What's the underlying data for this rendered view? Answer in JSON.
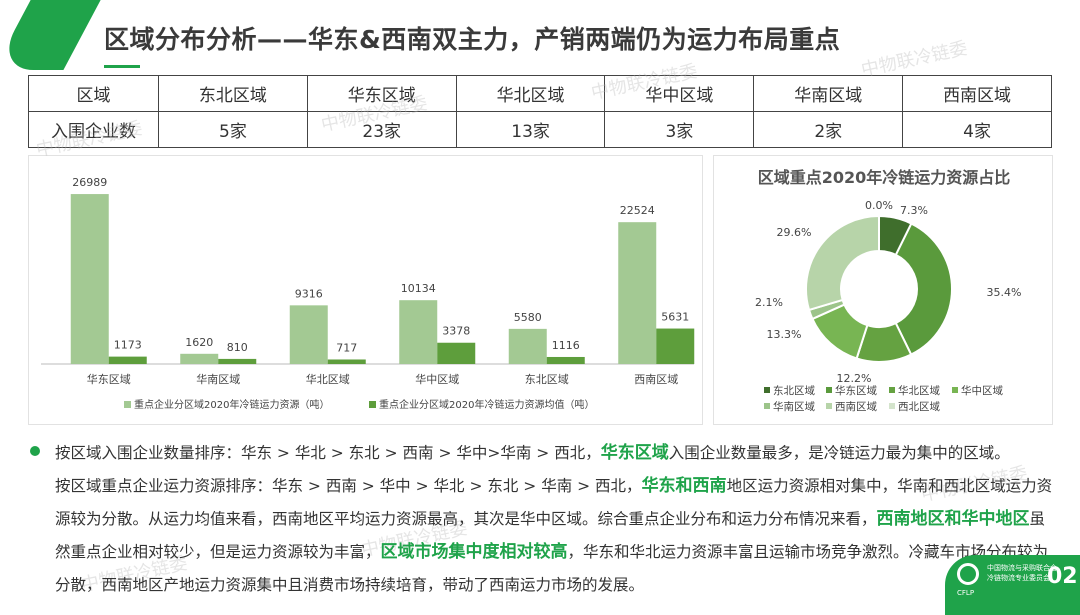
{
  "header": {
    "title": "区域分布分析——华东&西南双主力，产销两端仍为运力布局重点"
  },
  "watermark": "中物联冷链委",
  "table": {
    "headers": [
      "区域",
      "东北区域",
      "华东区域",
      "华北区域",
      "华中区域",
      "华南区域",
      "西南区域"
    ],
    "row": [
      "入围企业数",
      "5家",
      "23家",
      "13家",
      "3家",
      "2家",
      "4家"
    ]
  },
  "chart_data": [
    {
      "type": "bar",
      "categories": [
        "华东区域",
        "华南区域",
        "华北区域",
        "华中区域",
        "东北区域",
        "西南区域"
      ],
      "series": [
        {
          "name": "重点企业分区域2020年冷链运力资源（吨）",
          "values": [
            26989,
            1620,
            9316,
            10134,
            5580,
            22524
          ],
          "color": "#a3c993"
        },
        {
          "name": "重点企业分区域2020年冷链运力资源均值（吨）",
          "values": [
            1173,
            810,
            717,
            3378,
            1116,
            5631
          ],
          "color": "#5e9e3c"
        }
      ],
      "ylim": [
        0,
        27000
      ],
      "grid": false,
      "legend": "bottom"
    },
    {
      "type": "pie",
      "title": "区域重点2020年冷链运力资源占比",
      "categories": [
        "东北区域",
        "华东区域",
        "华北区域",
        "华中区域",
        "华南区域",
        "西南区域",
        "西北区域"
      ],
      "values": [
        7.3,
        35.4,
        12.2,
        13.3,
        2.1,
        29.6,
        0.0
      ],
      "labels": [
        "7.3%",
        "35.4%",
        "12.2%",
        "13.3%",
        "2.1%",
        "29.6%",
        "0.0%"
      ],
      "colors": [
        "#3f6e2c",
        "#5a9a3c",
        "#65a241",
        "#78b553",
        "#9cc48a",
        "#b7d4a9",
        "#d4e4cc"
      ],
      "legend": "bottom"
    }
  ],
  "body": {
    "line1": [
      {
        "t": "按区域入围企业数量排序：华东 > 华北 > 东北 > 西南 > 华中>华南 > 西北，"
      },
      {
        "t": "华东区域",
        "hl": true
      },
      {
        "t": "入围企业数量最多，是冷链运力最为集中的区域。"
      }
    ],
    "line2": [
      {
        "t": "按区域重点企业运力资源排序：华东 > 西南 > 华中 > 华北 > 东北 > 华南 > 西北，"
      },
      {
        "t": "华东和西南",
        "hl": true
      },
      {
        "t": "地区运力资源相对集中，华南和西北区域运力资源较为分散。从运力均值来看，西南地区平均运力资源最高，其次是华中区域。综合重点企业分布和运力分布情况来看，"
      },
      {
        "t": "西南地区和华中地区",
        "hl": true
      },
      {
        "t": "虽然重点企业相对较少，但是运力资源较为丰富，"
      },
      {
        "t": "区域市场集中度相对较高",
        "hl": true
      },
      {
        "t": "，华东和华北运力资源丰富且运输市场竞争激烈。冷藏车市场分布较为分散，西南地区产地运力资源集中且消费市场持续培育，带动了西南运力市场的发展。"
      }
    ]
  },
  "footer": {
    "logo_org1": "中国物流与采购联合会",
    "logo_org2": "冷链物流专业委员会",
    "logo_abbr": "CFLP",
    "page": "02"
  }
}
